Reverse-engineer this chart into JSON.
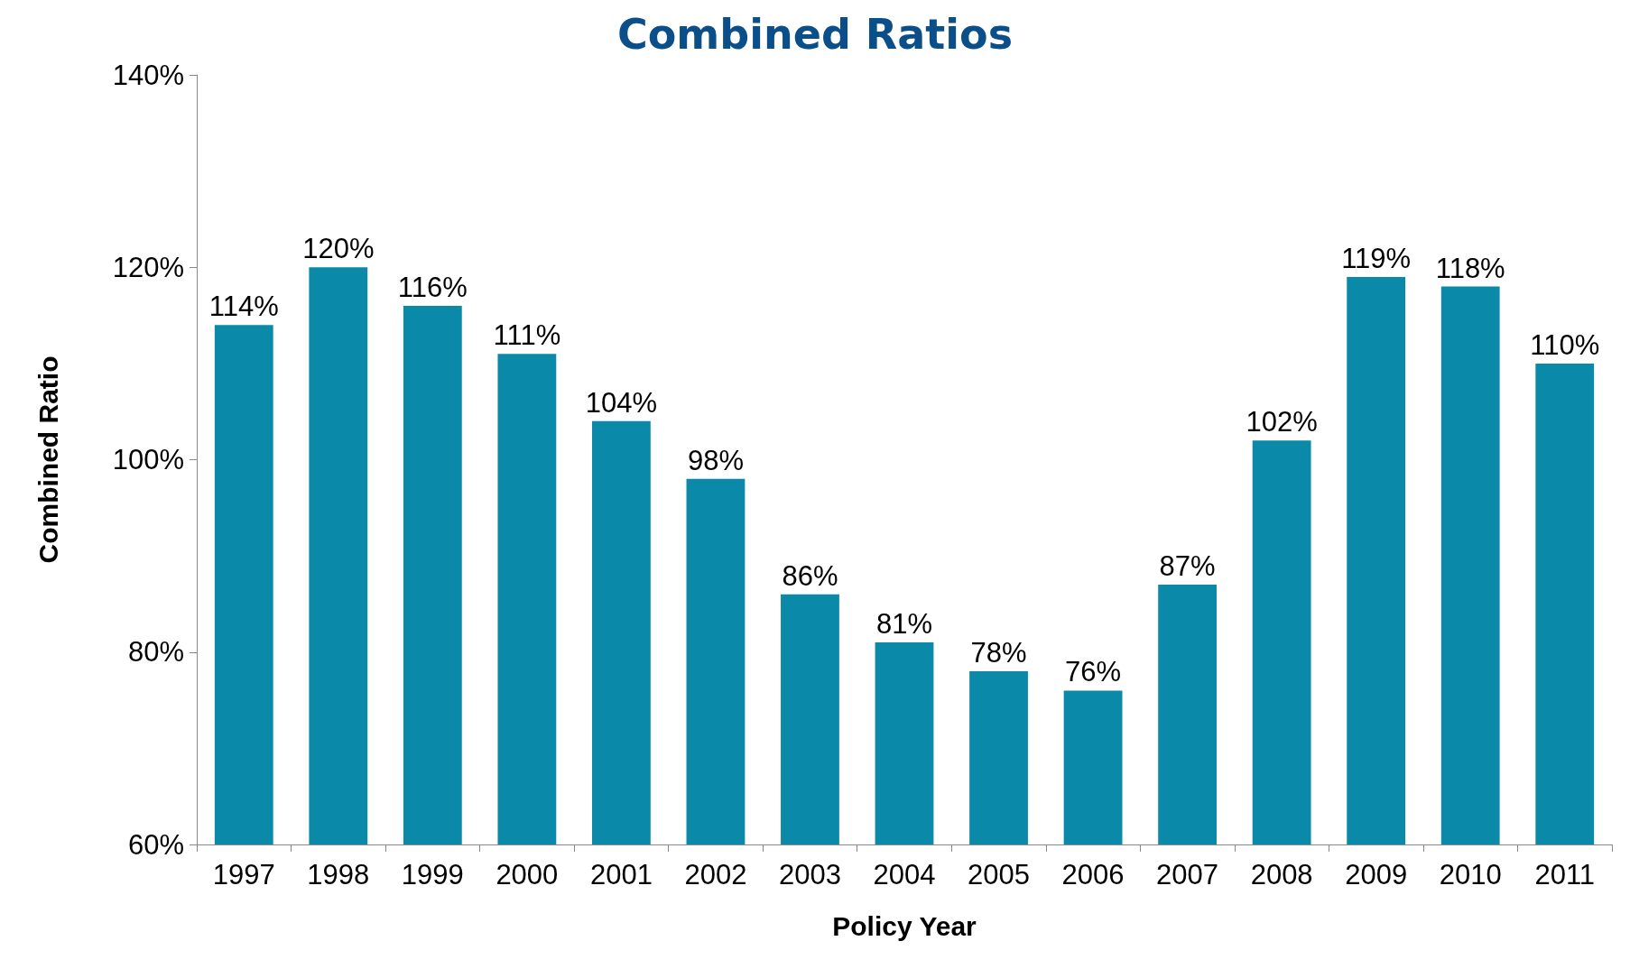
{
  "chart_data": {
    "type": "bar",
    "title": "Combined Ratios",
    "xlabel": "Policy Year",
    "ylabel": "Combined Ratio",
    "categories": [
      "1997",
      "1998",
      "1999",
      "2000",
      "2001",
      "2002",
      "2003",
      "2004",
      "2005",
      "2006",
      "2007",
      "2008",
      "2009",
      "2010",
      "2011"
    ],
    "values": [
      114,
      120,
      116,
      111,
      104,
      98,
      86,
      81,
      78,
      76,
      87,
      102,
      119,
      118,
      110
    ],
    "value_labels": [
      "114%",
      "120%",
      "116%",
      "111%",
      "104%",
      "98%",
      "86%",
      "81%",
      "78%",
      "76%",
      "87%",
      "102%",
      "119%",
      "118%",
      "110%"
    ],
    "color": "#0a8aa8",
    "ylim": [
      60,
      140
    ],
    "yticks": [
      {
        "value": 60,
        "label": "60%"
      },
      {
        "value": 80,
        "label": "80%"
      },
      {
        "value": 100,
        "label": "100%"
      },
      {
        "value": 120,
        "label": "120%"
      },
      {
        "value": 140,
        "label": "140%"
      }
    ],
    "grid": false
  }
}
